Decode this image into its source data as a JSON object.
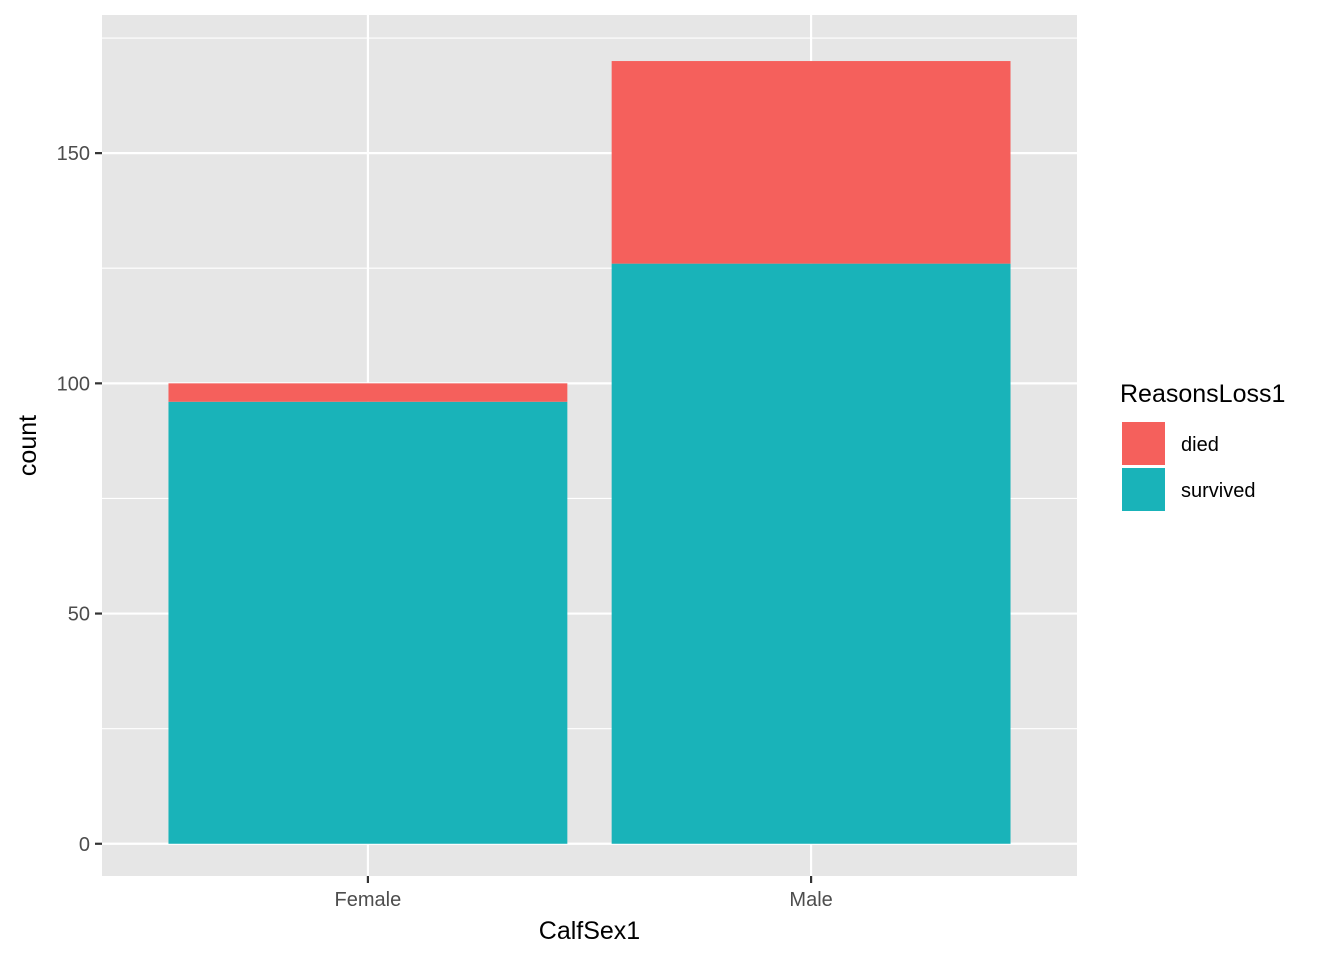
{
  "chart_data": {
    "type": "bar",
    "stacked": true,
    "categories": [
      "Female",
      "Male"
    ],
    "series": [
      {
        "name": "survived",
        "values": [
          96,
          126
        ],
        "color": "#19B3B9"
      },
      {
        "name": "died",
        "values": [
          4,
          44
        ],
        "color": "#F5605C"
      }
    ],
    "xlabel": "CalfSex1",
    "ylabel": "count",
    "ylim": [
      -7,
      180
    ],
    "yticks": [
      0,
      50,
      100,
      150
    ],
    "ytick_labels": [
      "0",
      "50",
      "100",
      "150"
    ],
    "legend": {
      "title": "ReasonsLoss1",
      "position": "right",
      "entries": [
        "died",
        "survived"
      ]
    },
    "panel_background": "#E6E6E6",
    "grid": true
  }
}
